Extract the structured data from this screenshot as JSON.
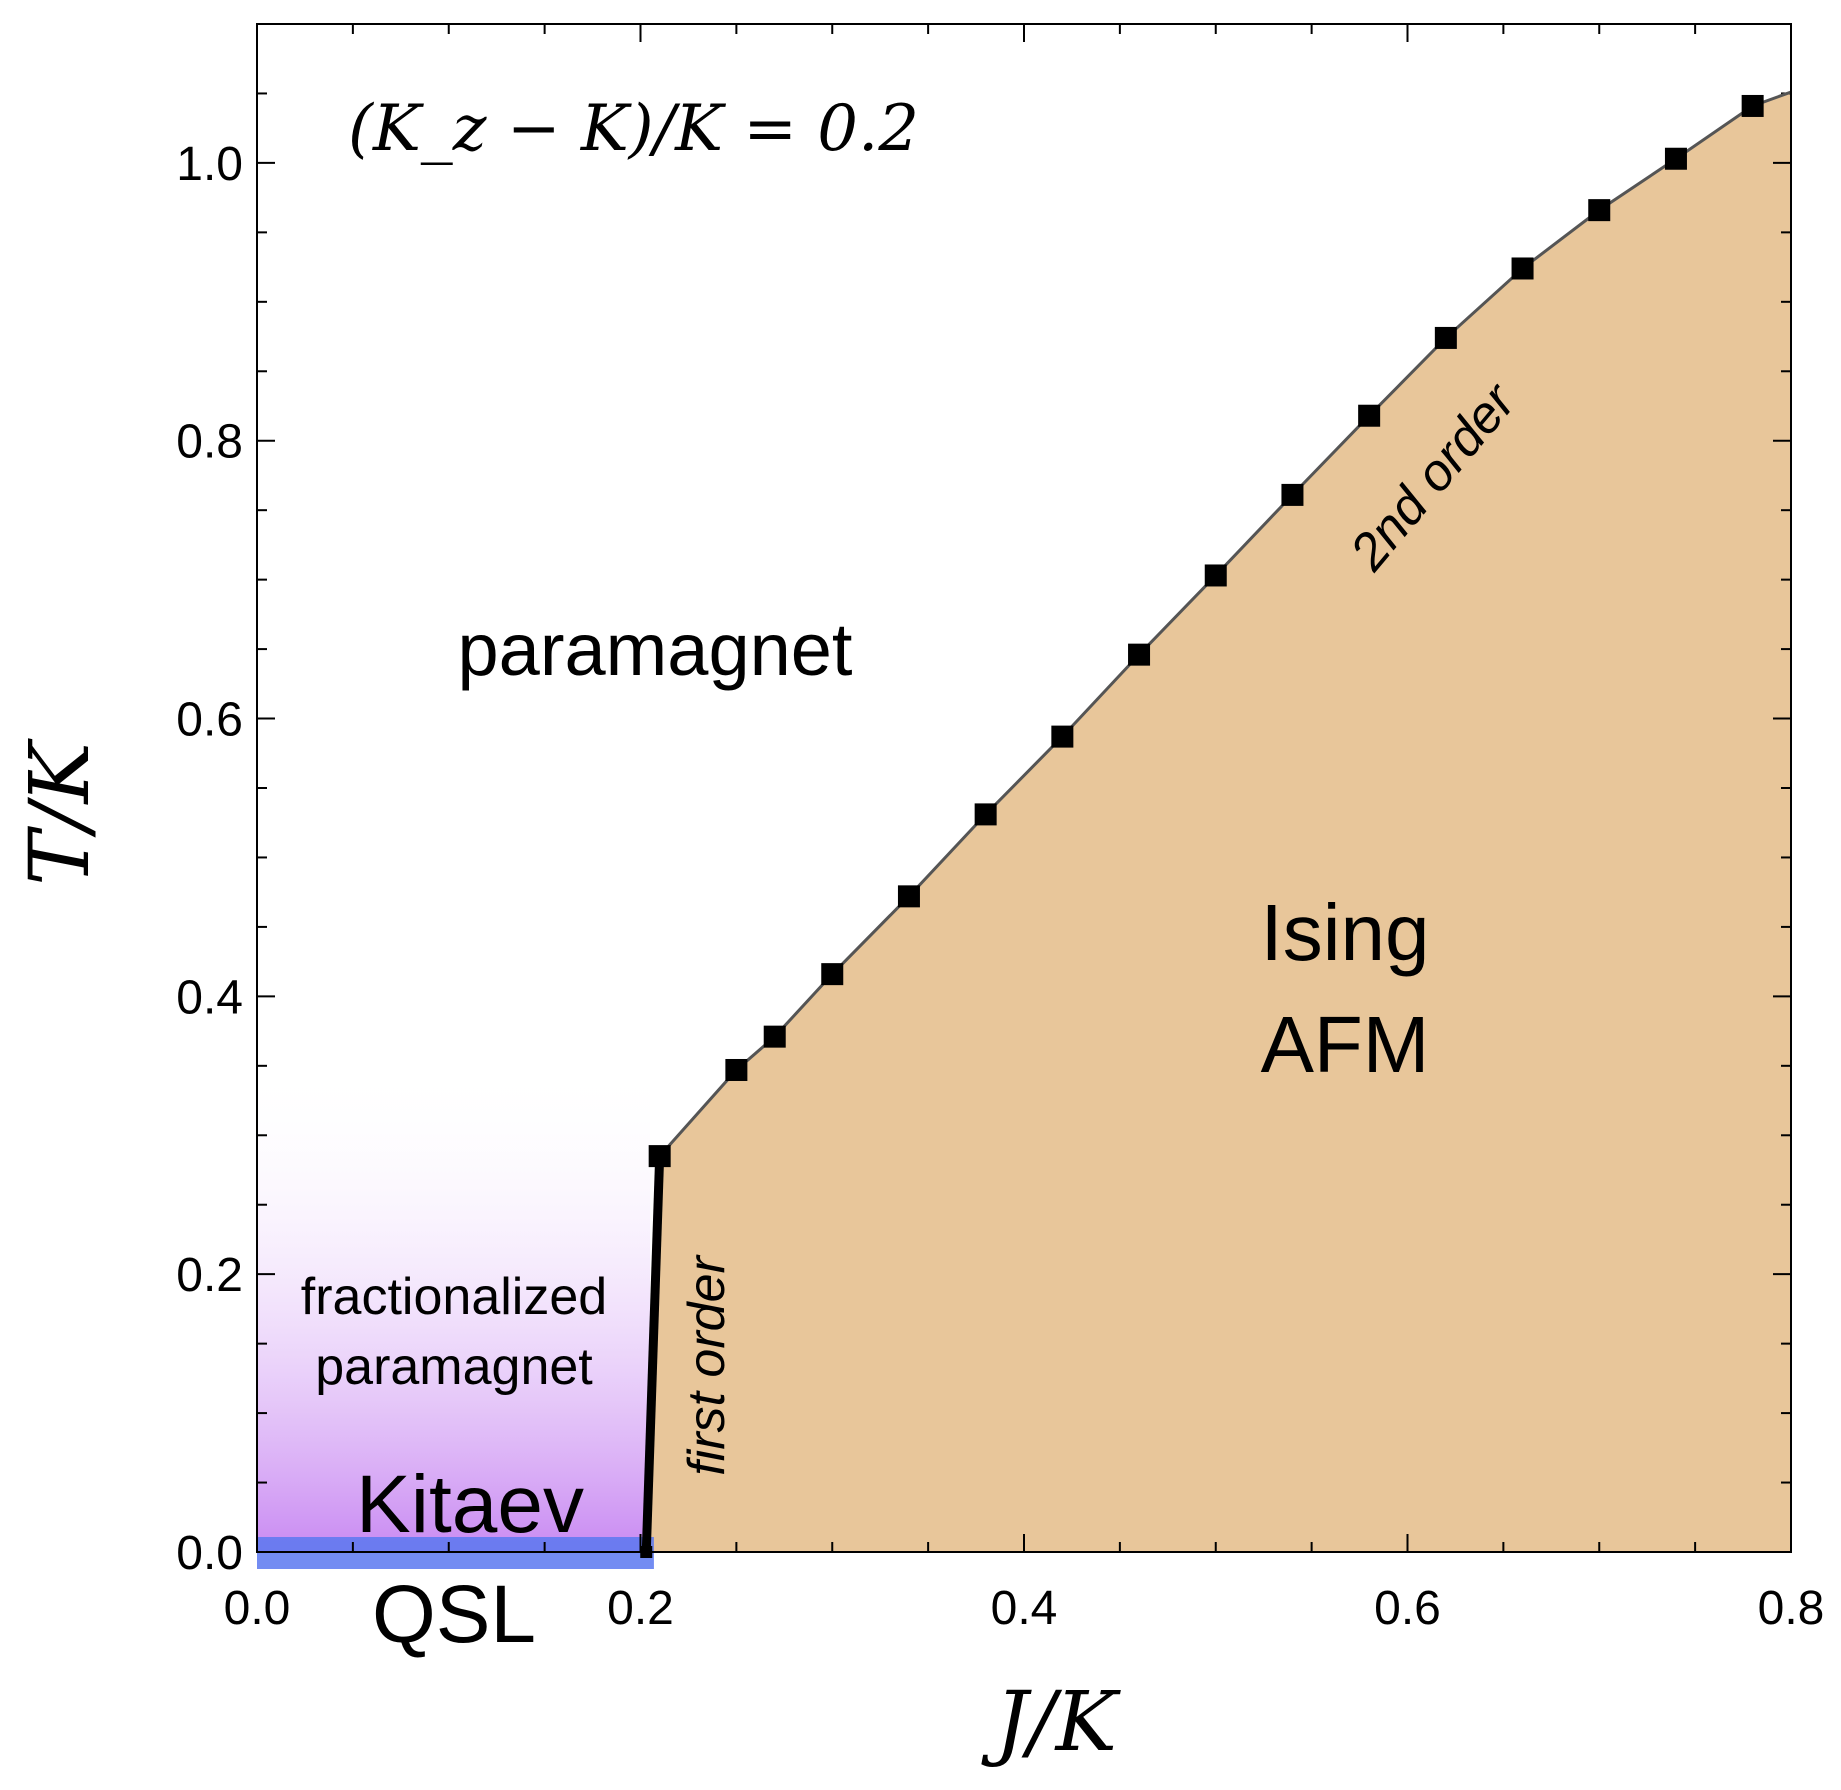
{
  "chart_data": {
    "type": "scatter",
    "title": "(K_z − K)/K = 0.2",
    "xlabel": "J/K",
    "ylabel": "T/K",
    "xlim": [
      0,
      0.8
    ],
    "ylim": [
      0,
      1.1
    ],
    "x_ticks": [
      "0.0",
      "0.2",
      "0.4",
      "0.6",
      "0.8"
    ],
    "x_tick_values": [
      0,
      0.2,
      0.4,
      0.6,
      0.8
    ],
    "y_ticks": [
      "0.0",
      "0.2",
      "0.4",
      "0.6",
      "0.8",
      "1.0"
    ],
    "y_tick_values": [
      0,
      0.2,
      0.4,
      0.6,
      0.8,
      1.0
    ],
    "grid": false,
    "series": [
      {
        "name": "transition points",
        "x": [
          0.21,
          0.25,
          0.27,
          0.3,
          0.34,
          0.38,
          0.42,
          0.46,
          0.5,
          0.54,
          0.58,
          0.62,
          0.66,
          0.7,
          0.74,
          0.78
        ],
        "y": [
          0.285,
          0.347,
          0.371,
          0.416,
          0.472,
          0.531,
          0.587,
          0.646,
          0.703,
          0.761,
          0.818,
          0.874,
          0.924,
          0.966,
          1.003,
          1.041
        ]
      }
    ],
    "boundary_end": {
      "x": 0.8,
      "y": 1.051
    },
    "first_order_line": {
      "x": [
        0.203,
        0.21
      ],
      "y": [
        0.0,
        0.285
      ]
    },
    "qsl_point": {
      "x": 0.203,
      "y": 0.0
    },
    "fractionalized_region": {
      "x": [
        0,
        0.205
      ],
      "y": [
        0,
        0.35
      ]
    },
    "colors": {
      "ising_fill": "#e8c69a",
      "fractionalized": "#c98af2",
      "qsl_band": "#5a78f0",
      "marker": "#000000",
      "boundary": "#555555"
    },
    "annotations": {
      "paramagnet": "paramagnet",
      "ising_1": "Ising",
      "ising_2": "AFM",
      "frac_1": "fractionalized",
      "frac_2": "paramagnet",
      "kitaev": "Kitaev",
      "qsl": "QSL",
      "first_order": "first order",
      "second_order": "2nd order"
    }
  }
}
